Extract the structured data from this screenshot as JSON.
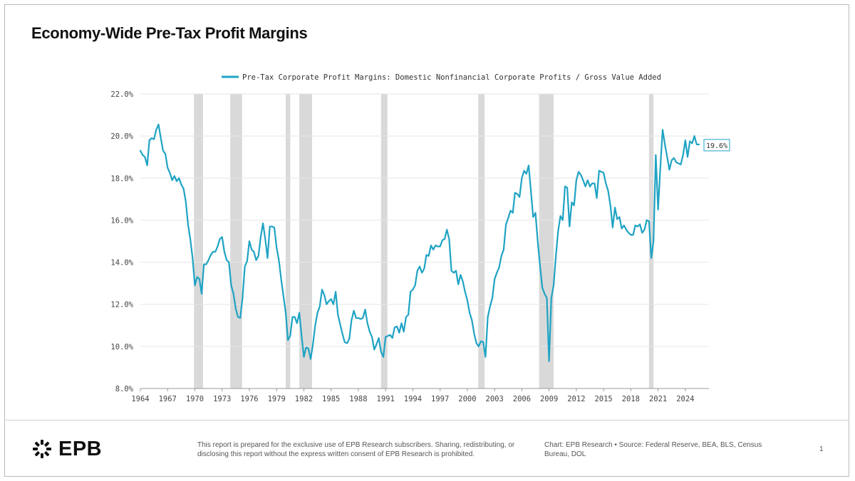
{
  "page": {
    "title": "Economy-Wide Pre-Tax Profit Margins",
    "brand": "EPB",
    "disclaimer": "This report is prepared for the exclusive use of EPB Research subscribers. Sharing, redistributing, or disclosing this report without the express written consent of EPB Research is prohibited.",
    "source": "Chart: EPB Research  •  Source: Federal Reserve, BEA, BLS, Census Bureau, DOL",
    "page_number": "1"
  },
  "colors": {
    "line": "#1fa3c4",
    "recession": "#d9d9d9",
    "grid": "#e6e6e6",
    "axis_text": "#444444"
  },
  "chart_data": {
    "type": "line",
    "title": "Economy-Wide Pre-Tax Profit Margins",
    "xlabel": "",
    "ylabel": "",
    "xlim": [
      1964,
      2026.6
    ],
    "ylim": [
      8,
      22
    ],
    "y_ticks": [
      8,
      10,
      12,
      14,
      16,
      18,
      20,
      22
    ],
    "y_tick_labels": [
      "8.0%",
      "10.0%",
      "12.0%",
      "14.0%",
      "16.0%",
      "18.0%",
      "20.0%",
      "22.0%"
    ],
    "x_ticks": [
      1964,
      1967,
      1970,
      1973,
      1976,
      1979,
      1982,
      1985,
      1988,
      1991,
      1994,
      1997,
      2000,
      2003,
      2006,
      2009,
      2012,
      2015,
      2018,
      2021,
      2024
    ],
    "grid": "horizontal",
    "legend": "top-center",
    "last_value_label": "19.6%",
    "recessions": [
      [
        1969.9,
        1970.9
      ],
      [
        1973.9,
        1975.2
      ],
      [
        1980.0,
        1980.5
      ],
      [
        1981.5,
        1982.9
      ],
      [
        1990.5,
        1991.2
      ],
      [
        2001.2,
        2001.9
      ],
      [
        2007.9,
        2009.5
      ],
      [
        2020.0,
        2020.5
      ]
    ],
    "series": [
      {
        "name": "Pre-Tax Corporate Profit Margins: Domestic Nonfinancial Corporate Profits / Gross Value Added",
        "x": [
          1964.0,
          1964.25,
          1964.5,
          1964.75,
          1965.0,
          1965.25,
          1965.5,
          1965.75,
          1966.0,
          1966.25,
          1966.5,
          1966.75,
          1967.0,
          1967.25,
          1967.5,
          1967.75,
          1968.0,
          1968.25,
          1968.5,
          1968.75,
          1969.0,
          1969.25,
          1969.5,
          1969.75,
          1970.0,
          1970.25,
          1970.5,
          1970.75,
          1971.0,
          1971.25,
          1971.5,
          1971.75,
          1972.0,
          1972.25,
          1972.5,
          1972.75,
          1973.0,
          1973.25,
          1973.5,
          1973.75,
          1974.0,
          1974.25,
          1974.5,
          1974.75,
          1975.0,
          1975.25,
          1975.5,
          1975.75,
          1976.0,
          1976.25,
          1976.5,
          1976.75,
          1977.0,
          1977.25,
          1977.5,
          1977.75,
          1978.0,
          1978.25,
          1978.5,
          1978.75,
          1979.0,
          1979.25,
          1979.5,
          1979.75,
          1980.0,
          1980.25,
          1980.5,
          1980.75,
          1981.0,
          1981.25,
          1981.5,
          1981.75,
          1982.0,
          1982.25,
          1982.5,
          1982.75,
          1983.0,
          1983.25,
          1983.5,
          1983.75,
          1984.0,
          1984.25,
          1984.5,
          1984.75,
          1985.0,
          1985.25,
          1985.5,
          1985.75,
          1986.0,
          1986.25,
          1986.5,
          1986.75,
          1987.0,
          1987.25,
          1987.5,
          1987.75,
          1988.0,
          1988.25,
          1988.5,
          1988.75,
          1989.0,
          1989.25,
          1989.5,
          1989.75,
          1990.0,
          1990.25,
          1990.5,
          1990.75,
          1991.0,
          1991.25,
          1991.5,
          1991.75,
          1992.0,
          1992.25,
          1992.5,
          1992.75,
          1993.0,
          1993.25,
          1993.5,
          1993.75,
          1994.0,
          1994.25,
          1994.5,
          1994.75,
          1995.0,
          1995.25,
          1995.5,
          1995.75,
          1996.0,
          1996.25,
          1996.5,
          1996.75,
          1997.0,
          1997.25,
          1997.5,
          1997.75,
          1998.0,
          1998.25,
          1998.5,
          1998.75,
          1999.0,
          1999.25,
          1999.5,
          1999.75,
          2000.0,
          2000.25,
          2000.5,
          2000.75,
          2001.0,
          2001.25,
          2001.5,
          2001.75,
          2002.0,
          2002.25,
          2002.5,
          2002.75,
          2003.0,
          2003.25,
          2003.5,
          2003.75,
          2004.0,
          2004.25,
          2004.5,
          2004.75,
          2005.0,
          2005.25,
          2005.5,
          2005.75,
          2006.0,
          2006.25,
          2006.5,
          2006.75,
          2007.0,
          2007.25,
          2007.5,
          2007.75,
          2008.0,
          2008.25,
          2008.5,
          2008.75,
          2009.0,
          2009.25,
          2009.5,
          2009.75,
          2010.0,
          2010.25,
          2010.5,
          2010.75,
          2011.0,
          2011.25,
          2011.5,
          2011.75,
          2012.0,
          2012.25,
          2012.5,
          2012.75,
          2013.0,
          2013.25,
          2013.5,
          2013.75,
          2014.0,
          2014.25,
          2014.5,
          2014.75,
          2015.0,
          2015.25,
          2015.5,
          2015.75,
          2016.0,
          2016.25,
          2016.5,
          2016.75,
          2017.0,
          2017.25,
          2017.5,
          2017.75,
          2018.0,
          2018.25,
          2018.5,
          2018.75,
          2019.0,
          2019.25,
          2019.5,
          2019.75,
          2020.0,
          2020.25,
          2020.5,
          2020.75,
          2021.0,
          2021.25,
          2021.5,
          2021.75,
          2022.0,
          2022.25,
          2022.5,
          2022.75,
          2023.0,
          2023.25,
          2023.5,
          2023.75,
          2024.0,
          2024.25,
          2024.5,
          2024.75,
          2025.0,
          2025.25,
          2025.5
        ],
        "values": [
          19.3,
          19.1,
          19.0,
          18.6,
          19.8,
          19.9,
          19.85,
          20.3,
          20.55,
          19.9,
          19.3,
          19.15,
          18.5,
          18.25,
          17.9,
          18.1,
          17.85,
          18.0,
          17.7,
          17.5,
          16.9,
          15.8,
          15.1,
          14.2,
          12.9,
          13.3,
          13.2,
          12.5,
          13.9,
          13.9,
          14.1,
          14.35,
          14.5,
          14.5,
          14.75,
          15.1,
          15.2,
          14.5,
          14.1,
          14.0,
          12.9,
          12.5,
          11.8,
          11.4,
          11.35,
          12.3,
          13.8,
          14.05,
          15.0,
          14.6,
          14.5,
          14.1,
          14.3,
          15.2,
          15.85,
          15.1,
          14.2,
          15.7,
          15.7,
          15.65,
          14.7,
          14.1,
          13.2,
          12.4,
          11.6,
          10.3,
          10.5,
          11.4,
          11.4,
          11.1,
          11.6,
          10.5,
          9.5,
          9.95,
          9.9,
          9.4,
          10.1,
          11.0,
          11.6,
          11.9,
          12.7,
          12.45,
          12.0,
          12.15,
          12.25,
          12.0,
          12.6,
          11.5,
          11.05,
          10.6,
          10.2,
          10.15,
          10.35,
          11.25,
          11.7,
          11.35,
          11.35,
          11.3,
          11.35,
          11.75,
          11.1,
          10.7,
          10.45,
          9.85,
          10.1,
          10.4,
          9.75,
          9.5,
          10.45,
          10.5,
          10.55,
          10.4,
          10.9,
          10.95,
          10.65,
          11.1,
          10.7,
          11.4,
          11.5,
          12.6,
          12.7,
          12.9,
          13.6,
          13.8,
          13.5,
          13.7,
          14.35,
          14.3,
          14.8,
          14.6,
          14.8,
          14.75,
          14.75,
          15.05,
          15.1,
          15.55,
          15.1,
          13.6,
          13.5,
          13.6,
          12.95,
          13.4,
          13.1,
          12.6,
          12.2,
          11.6,
          11.25,
          10.6,
          10.15,
          10.0,
          10.25,
          10.2,
          9.5,
          11.4,
          11.9,
          12.3,
          13.2,
          13.5,
          13.75,
          14.3,
          14.6,
          15.8,
          16.1,
          16.45,
          16.35,
          17.3,
          17.25,
          17.1,
          18.0,
          18.35,
          18.2,
          18.6,
          17.4,
          16.15,
          16.35,
          15.0,
          13.85,
          12.8,
          12.5,
          12.3,
          9.3,
          12.3,
          12.9,
          14.3,
          15.5,
          16.2,
          16.0,
          17.6,
          17.55,
          15.7,
          16.85,
          16.7,
          17.9,
          18.3,
          18.15,
          17.9,
          17.6,
          17.9,
          17.6,
          17.75,
          17.75,
          17.05,
          18.35,
          18.3,
          18.25,
          17.75,
          17.4,
          16.7,
          15.65,
          16.6,
          16.05,
          16.15,
          15.6,
          15.75,
          15.55,
          15.4,
          15.3,
          15.3,
          15.75,
          15.7,
          15.8,
          15.4,
          15.55,
          16.0,
          15.95,
          14.2,
          15.0,
          19.1,
          16.5,
          18.5,
          20.3,
          19.6,
          19.0,
          18.4,
          18.85,
          18.95,
          18.75,
          18.7,
          18.65,
          19.1,
          19.8,
          19.0,
          19.75,
          19.65,
          20.0,
          19.6,
          19.6
        ]
      }
    ]
  }
}
